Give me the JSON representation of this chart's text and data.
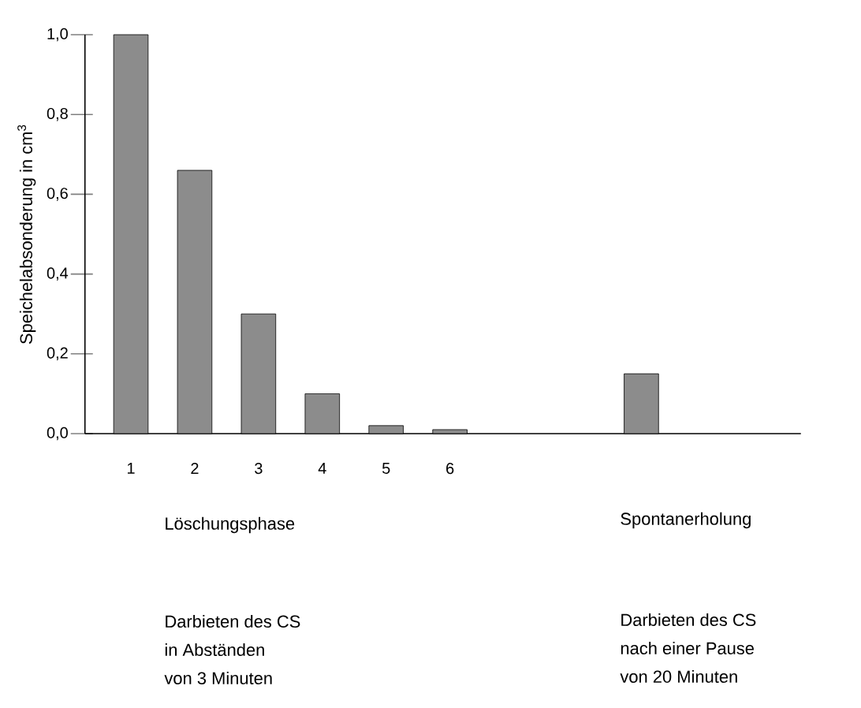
{
  "chart_data": {
    "type": "bar",
    "ylabel": "Speichelabsonderung in cm$^{3}$",
    "categories": [
      "1",
      "2",
      "3",
      "4",
      "5",
      "6",
      null,
      null,
      null,
      null
    ],
    "values": [
      1.0,
      0.66,
      0.3,
      0.1,
      0.02,
      0.01,
      null,
      null,
      0.15,
      null
    ],
    "color": "#8c8c8c",
    "ylim": [
      0,
      1
    ],
    "yticks": [
      {
        "value": 0,
        "label": "0,0"
      },
      {
        "value": 0.2,
        "label": "0,2"
      },
      {
        "value": 0.4,
        "label": "0,4"
      },
      {
        "value": 0.6,
        "label": "0,6"
      },
      {
        "value": 0.8,
        "label": "0,8"
      },
      {
        "value": 1.0,
        "label": "1,0"
      }
    ],
    "annotations": [
      "Löschungsphase",
      "Spontanerholung",
      "Darbieten des CS",
      "in Abständen",
      "von 3 Minuten",
      "Darbieten des CS",
      "nach einer Pause",
      "von 20 Minuten"
    ]
  }
}
